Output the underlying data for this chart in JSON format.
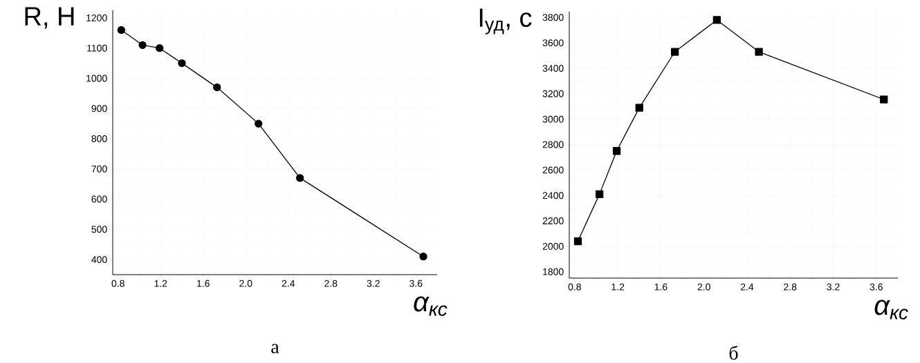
{
  "chart_data": [
    {
      "type": "line",
      "ylabel": "R, Н",
      "xlabel": "α$_{кс}$",
      "annotations": [
        "а"
      ],
      "x": [
        0.83,
        1.03,
        1.19,
        1.4,
        1.73,
        2.12,
        2.51,
        3.67
      ],
      "series": [
        {
          "color": "#000000",
          "values": [
            1160,
            1110,
            1100,
            1050,
            970,
            850,
            670,
            410
          ]
        }
      ],
      "marker": "circle",
      "line_style": "solid",
      "grid": true,
      "xlim": [
        0.75,
        3.8
      ],
      "ylim": [
        350,
        1225
      ],
      "xticks": [
        0.8,
        1.2,
        1.6,
        {
          "value": 2,
          "label": "2.0"
        },
        2.4,
        2.8,
        3.2,
        3.6
      ],
      "yticks": [
        400,
        500,
        600,
        700,
        800,
        900,
        1000,
        1100,
        1200
      ]
    },
    {
      "type": "line",
      "ylabel": "I$_{уд}$, с",
      "xlabel": "α$_{кс}$",
      "annotations": [
        "б"
      ],
      "x": [
        0.83,
        1.03,
        1.19,
        1.4,
        1.73,
        2.12,
        2.51,
        3.67
      ],
      "series": [
        {
          "color": "#000000",
          "values": [
            2040,
            2410,
            2750,
            3090,
            3530,
            3780,
            3530,
            3155
          ]
        }
      ],
      "marker": "square",
      "line_style": "solid",
      "grid": true,
      "xlim": [
        0.75,
        3.8
      ],
      "ylim": [
        1750,
        3845
      ],
      "xticks": [
        0.8,
        1.2,
        1.6,
        {
          "value": 2,
          "label": "2.0"
        },
        2.4,
        2.8,
        3.2,
        3.6
      ],
      "yticks": [
        1800,
        2000,
        2200,
        2400,
        2600,
        2800,
        3000,
        3200,
        3400,
        3600,
        3800
      ]
    }
  ]
}
